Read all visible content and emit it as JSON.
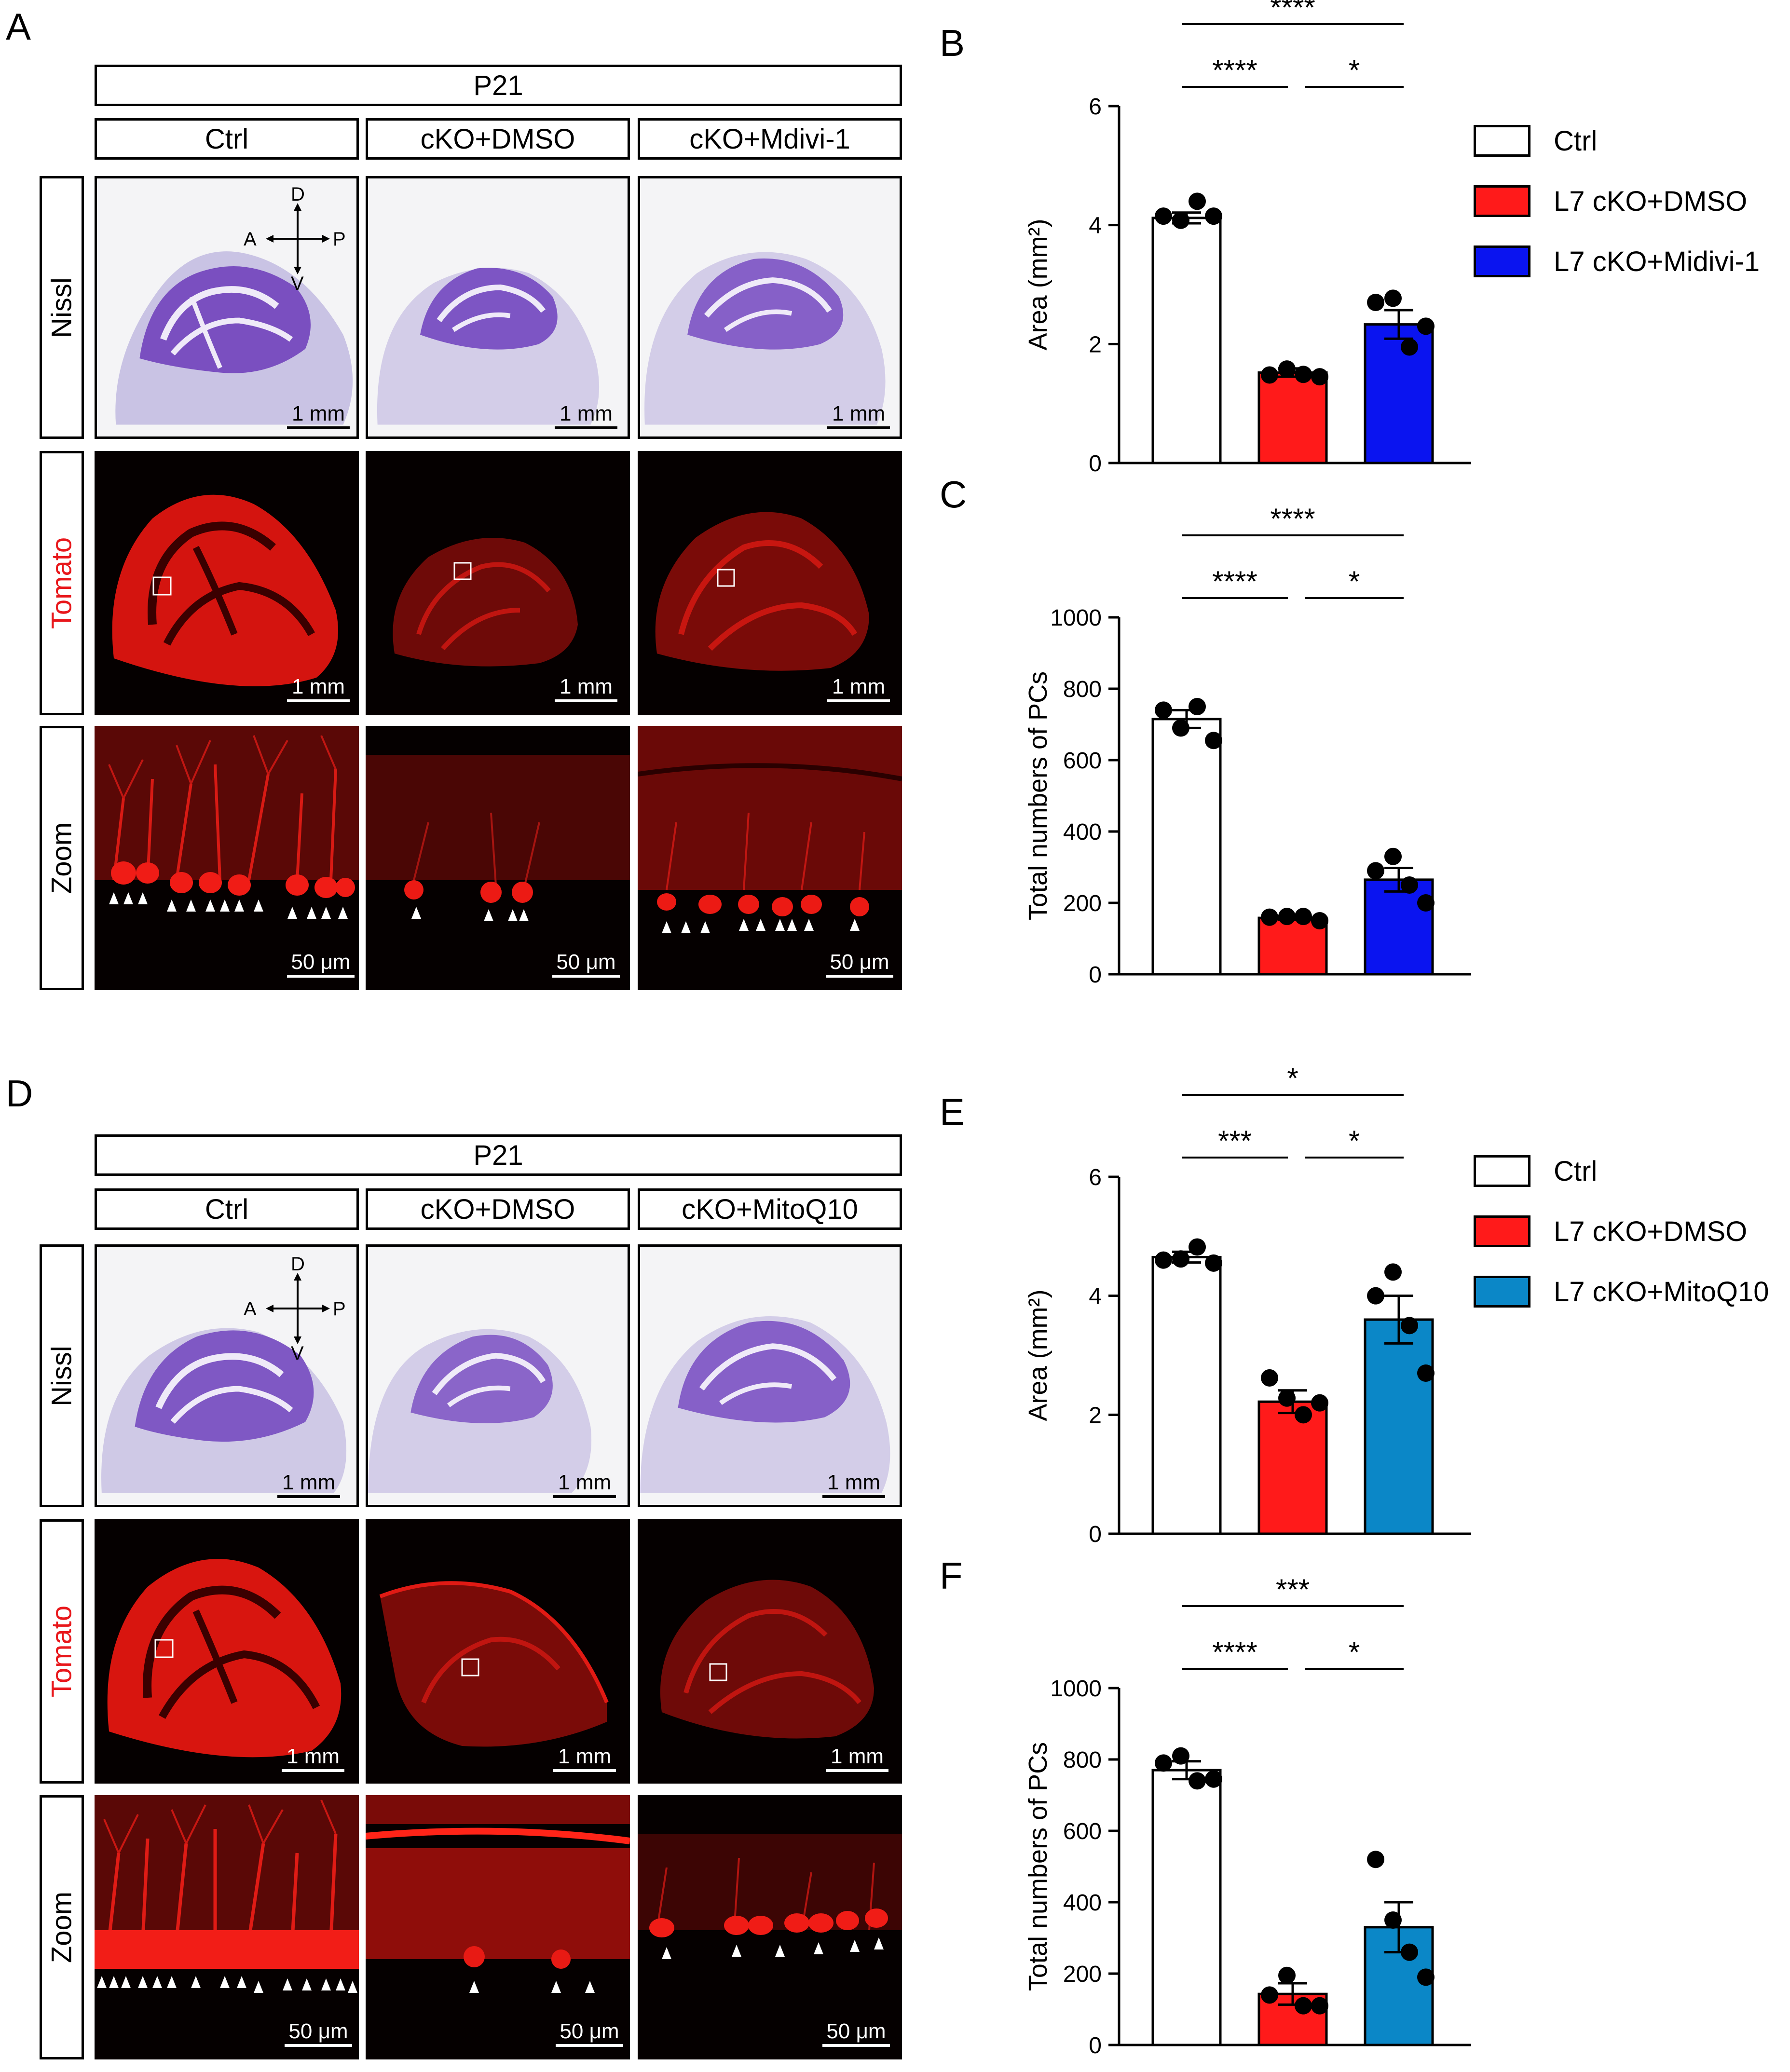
{
  "panels": {
    "a": {
      "letter": "A",
      "timepoint": "P21",
      "columns": [
        "Ctrl",
        "cKO+DMSO",
        "cKO+Mdivi-1"
      ],
      "rows": [
        "Nissl",
        "Tomato",
        "Zoom"
      ],
      "row_label_colors": [
        "#000000",
        "#e8171b",
        "#000000"
      ],
      "orientation": {
        "d": "D",
        "v": "V",
        "a": "A",
        "p": "P"
      },
      "scalebars": {
        "overview": "1 mm",
        "zoom": "50 μm"
      }
    },
    "b": {
      "letter": "B"
    },
    "c": {
      "letter": "C"
    },
    "d": {
      "letter": "D",
      "timepoint": "P21",
      "columns": [
        "Ctrl",
        "cKO+DMSO",
        "cKO+MitoQ10"
      ],
      "rows": [
        "Nissl",
        "Tomato",
        "Zoom"
      ],
      "row_label_colors": [
        "#000000",
        "#e8171b",
        "#000000"
      ],
      "orientation": {
        "d": "D",
        "v": "V",
        "a": "A",
        "p": "P"
      },
      "scalebars": {
        "overview": "1 mm",
        "zoom": "50 μm"
      }
    },
    "e": {
      "letter": "E"
    },
    "f": {
      "letter": "F"
    }
  },
  "legends": {
    "top": [
      {
        "label": "Ctrl",
        "color": "#ffffff"
      },
      {
        "label": "L7 cKO+DMSO",
        "color": "#ff1a1a"
      },
      {
        "label": "L7 cKO+Midivi-1",
        "color": "#0a14f0"
      }
    ],
    "bottom": [
      {
        "label": "Ctrl",
        "color": "#ffffff"
      },
      {
        "label": "L7 cKO+DMSO",
        "color": "#ff1a1a"
      },
      {
        "label": "L7 cKO+MitoQ10",
        "color": "#0b87c7"
      }
    ]
  },
  "chart_data": [
    {
      "id": "B",
      "type": "bar",
      "categories": [
        "Ctrl",
        "L7 cKO+DMSO",
        "L7 cKO+Midivi-1"
      ],
      "values": [
        4.12,
        1.52,
        2.33
      ],
      "sem": [
        0.09,
        0.07,
        0.24
      ],
      "points": [
        [
          4.15,
          4.08,
          4.4,
          4.15
        ],
        [
          1.48,
          1.58,
          1.49,
          1.45
        ],
        [
          2.7,
          2.77,
          1.95,
          2.3
        ]
      ],
      "colors": [
        "#ffffff",
        "#ff1a1a",
        "#0a14f0"
      ],
      "ylabel": "Area (mm²)",
      "ylim": [
        0,
        6
      ],
      "yticks": [
        0,
        2,
        4,
        6
      ],
      "comparisons": [
        {
          "from": 0,
          "to": 2,
          "label": "****"
        },
        {
          "from": 0,
          "to": 1,
          "label": "****"
        },
        {
          "from": 1,
          "to": 2,
          "label": "*"
        }
      ]
    },
    {
      "id": "C",
      "type": "bar",
      "categories": [
        "Ctrl",
        "L7 cKO+DMSO",
        "L7 cKO+Midivi-1"
      ],
      "values": [
        715,
        158,
        265
      ],
      "sem": [
        25,
        5,
        33
      ],
      "points": [
        [
          740,
          690,
          750,
          655
        ],
        [
          160,
          162,
          162,
          150
        ],
        [
          290,
          330,
          250,
          200
        ]
      ],
      "colors": [
        "#ffffff",
        "#ff1a1a",
        "#0a14f0"
      ],
      "ylabel": "Total numbers of PCs",
      "ylim": [
        0,
        1000
      ],
      "yticks": [
        0,
        200,
        400,
        600,
        800,
        1000
      ],
      "comparisons": [
        {
          "from": 0,
          "to": 2,
          "label": "****"
        },
        {
          "from": 0,
          "to": 1,
          "label": "****"
        },
        {
          "from": 1,
          "to": 2,
          "label": "*"
        }
      ]
    },
    {
      "id": "E",
      "type": "bar",
      "categories": [
        "Ctrl",
        "L7 cKO+DMSO",
        "L7 cKO+MitoQ10"
      ],
      "values": [
        4.65,
        2.22,
        3.6
      ],
      "sem": [
        0.09,
        0.19,
        0.4
      ],
      "points": [
        [
          4.6,
          4.62,
          4.82,
          4.55
        ],
        [
          2.62,
          2.28,
          2.0,
          2.2
        ],
        [
          4.0,
          4.4,
          3.5,
          2.7
        ]
      ],
      "colors": [
        "#ffffff",
        "#ff1a1a",
        "#0b87c7"
      ],
      "ylabel": "Area (mm²)",
      "ylim": [
        0,
        6
      ],
      "yticks": [
        0,
        2,
        4,
        6
      ],
      "comparisons": [
        {
          "from": 0,
          "to": 2,
          "label": "*"
        },
        {
          "from": 0,
          "to": 1,
          "label": "***"
        },
        {
          "from": 1,
          "to": 2,
          "label": "*"
        }
      ]
    },
    {
      "id": "F",
      "type": "bar",
      "categories": [
        "Ctrl",
        "L7 cKO+DMSO",
        "L7 cKO+MitoQ10"
      ],
      "values": [
        770,
        143,
        330
      ],
      "sem": [
        25,
        30,
        70
      ],
      "points": [
        [
          790,
          810,
          740,
          745
        ],
        [
          140,
          195,
          110,
          110
        ],
        [
          520,
          350,
          260,
          190
        ]
      ],
      "colors": [
        "#ffffff",
        "#ff1a1a",
        "#0b87c7"
      ],
      "ylabel": "Total numbers of PCs",
      "ylim": [
        0,
        1000
      ],
      "yticks": [
        0,
        200,
        400,
        600,
        800,
        1000
      ],
      "comparisons": [
        {
          "from": 0,
          "to": 2,
          "label": "***"
        },
        {
          "from": 0,
          "to": 1,
          "label": "****"
        },
        {
          "from": 1,
          "to": 2,
          "label": "*"
        }
      ]
    }
  ]
}
